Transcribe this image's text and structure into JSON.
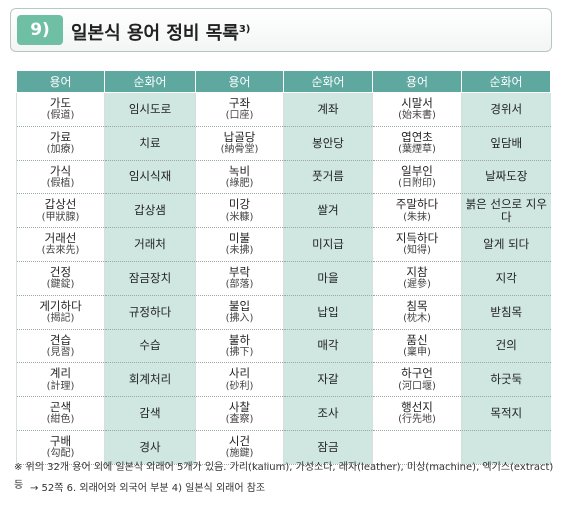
{
  "header": {
    "number": "9)",
    "title": "일본식 용어 정비 목록",
    "sup": "3)"
  },
  "table": {
    "headers": [
      "용어",
      "순화어",
      "용어",
      "순화어",
      "용어",
      "순화어"
    ],
    "rows": [
      [
        {
          "w": "가도",
          "h": "(假道)"
        },
        {
          "p": "임시도로"
        },
        {
          "w": "구좌",
          "h": "(口座)"
        },
        {
          "p": "계좌"
        },
        {
          "w": "시말서",
          "h": "(始末書)"
        },
        {
          "p": "경위서"
        }
      ],
      [
        {
          "w": "가료",
          "h": "(加療)"
        },
        {
          "p": "치료"
        },
        {
          "w": "납골당",
          "h": "(納骨堂)"
        },
        {
          "p": "봉안당"
        },
        {
          "w": "엽연초",
          "h": "(葉煙草)"
        },
        {
          "p": "잎담배"
        }
      ],
      [
        {
          "w": "가식",
          "h": "(假植)"
        },
        {
          "p": "임시식재"
        },
        {
          "w": "녹비",
          "h": "(綠肥)"
        },
        {
          "p": "풋거름"
        },
        {
          "w": "일부인",
          "h": "(日附印)"
        },
        {
          "p": "날짜도장"
        }
      ],
      [
        {
          "w": "갑상선",
          "h": "(甲狀腺)"
        },
        {
          "p": "갑상샘"
        },
        {
          "w": "미강",
          "h": "(米糠)"
        },
        {
          "p": "쌀겨"
        },
        {
          "w": "주말하다",
          "h": "(朱抹)"
        },
        {
          "p": "붉은 선으로 지우다"
        }
      ],
      [
        {
          "w": "거래선",
          "h": "(去來先)"
        },
        {
          "p": "거래처"
        },
        {
          "w": "미불",
          "h": "(未拂)"
        },
        {
          "p": "미지급"
        },
        {
          "w": "지득하다",
          "h": "(知得)"
        },
        {
          "p": "알게 되다"
        }
      ],
      [
        {
          "w": "건정",
          "h": "(鍵錠)"
        },
        {
          "p": "잠금장치"
        },
        {
          "w": "부락",
          "h": "(部落)"
        },
        {
          "p": "마을"
        },
        {
          "w": "지참",
          "h": "(遲參)"
        },
        {
          "p": "지각"
        }
      ],
      [
        {
          "w": "게기하다",
          "h": "(揭記)"
        },
        {
          "p": "규정하다"
        },
        {
          "w": "불입",
          "h": "(拂入)"
        },
        {
          "p": "납입"
        },
        {
          "w": "침목",
          "h": "(枕木)"
        },
        {
          "p": "받침목"
        }
      ],
      [
        {
          "w": "견습",
          "h": "(見習)"
        },
        {
          "p": "수습"
        },
        {
          "w": "불하",
          "h": "(拂下)"
        },
        {
          "p": "매각"
        },
        {
          "w": "품신",
          "h": "(稟申)"
        },
        {
          "p": "건의"
        }
      ],
      [
        {
          "w": "계리",
          "h": "(計理)"
        },
        {
          "p": "회계처리"
        },
        {
          "w": "사리",
          "h": "(砂利)"
        },
        {
          "p": "자갈"
        },
        {
          "w": "하구언",
          "h": "(河口堰)"
        },
        {
          "p": "하굿둑"
        }
      ],
      [
        {
          "w": "곤색",
          "h": "(紺色)"
        },
        {
          "p": "감색"
        },
        {
          "w": "사찰",
          "h": "(査察)"
        },
        {
          "p": "조사"
        },
        {
          "w": "행선지",
          "h": "(行先地)"
        },
        {
          "p": "목적지"
        }
      ],
      [
        {
          "w": "구배",
          "h": "(勾配)"
        },
        {
          "p": "경사"
        },
        {
          "w": "시건",
          "h": "(施鍵)"
        },
        {
          "p": "잠금"
        },
        {
          "w": "",
          "h": ""
        },
        {
          "p": ""
        }
      ]
    ]
  },
  "note": {
    "line1": "※ 위의 32개 용어 외에 일본식 외래어 5개가 있음. 가리(kalium), 가성소다, 레자(leather), 미싱(machine), 엑기스(extract) 등",
    "line2": "→ 52쪽 6. 외래어와 외국어 부분 4) 일본식 외래어 참조"
  }
}
